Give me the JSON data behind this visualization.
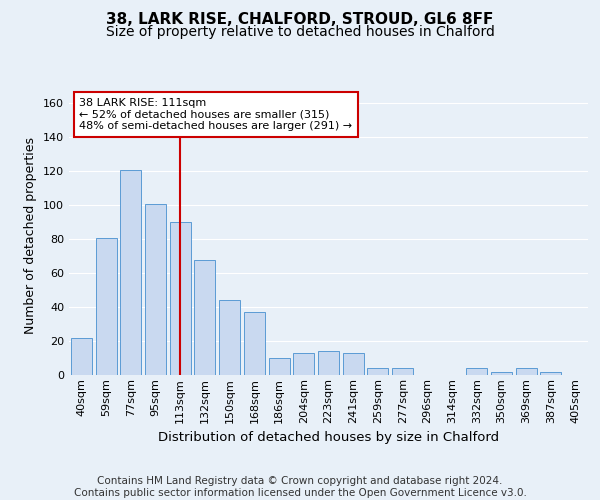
{
  "title1": "38, LARK RISE, CHALFORD, STROUD, GL6 8FF",
  "title2": "Size of property relative to detached houses in Chalford",
  "xlabel": "Distribution of detached houses by size in Chalford",
  "ylabel": "Number of detached properties",
  "categories": [
    "40sqm",
    "59sqm",
    "77sqm",
    "95sqm",
    "113sqm",
    "132sqm",
    "150sqm",
    "168sqm",
    "186sqm",
    "204sqm",
    "223sqm",
    "241sqm",
    "259sqm",
    "277sqm",
    "296sqm",
    "314sqm",
    "332sqm",
    "350sqm",
    "369sqm",
    "387sqm",
    "405sqm"
  ],
  "values": [
    22,
    81,
    121,
    101,
    90,
    68,
    44,
    37,
    10,
    13,
    14,
    13,
    4,
    4,
    0,
    0,
    4,
    2,
    4,
    2,
    0
  ],
  "bar_color": "#c9d9f0",
  "bar_edge_color": "#5b9bd5",
  "highlight_index": 4,
  "annotation_line1": "38 LARK RISE: 111sqm",
  "annotation_line2": "← 52% of detached houses are smaller (315)",
  "annotation_line3": "48% of semi-detached houses are larger (291) →",
  "footer": "Contains HM Land Registry data © Crown copyright and database right 2024.\nContains public sector information licensed under the Open Government Licence v3.0.",
  "ylim": [
    0,
    165
  ],
  "yticks": [
    0,
    20,
    40,
    60,
    80,
    100,
    120,
    140,
    160
  ],
  "background_color": "#e8f0f8",
  "plot_bg_color": "#e8f0f8",
  "annotation_box_color": "white",
  "annotation_box_edge": "#cc0000",
  "red_line_color": "#cc0000",
  "grid_color": "#ffffff",
  "title1_fontsize": 11,
  "title2_fontsize": 10,
  "xlabel_fontsize": 9.5,
  "ylabel_fontsize": 9,
  "tick_fontsize": 8,
  "footer_fontsize": 7.5
}
